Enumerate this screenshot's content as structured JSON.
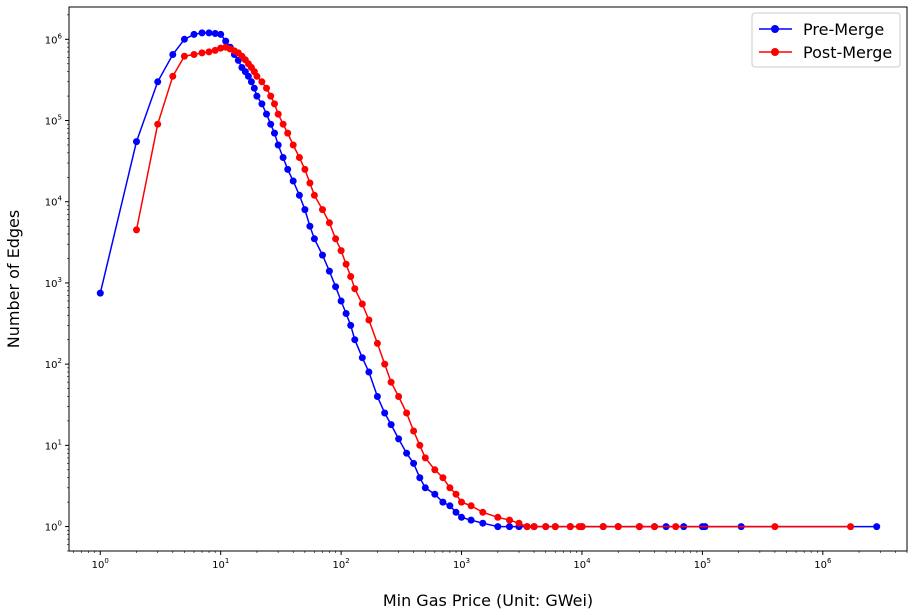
{
  "chart_data": {
    "type": "line",
    "xlabel": "Min Gas Price (Unit: GWei)",
    "ylabel": "Number of Edges",
    "xscale": "log",
    "yscale": "log",
    "xlim": [
      0.55,
      5000000
    ],
    "ylim": [
      0.5,
      2500000
    ],
    "xticks": [
      {
        "value": 1,
        "base": "10",
        "exp": "0"
      },
      {
        "value": 10,
        "base": "10",
        "exp": "1"
      },
      {
        "value": 100,
        "base": "10",
        "exp": "2"
      },
      {
        "value": 1000,
        "base": "10",
        "exp": "3"
      },
      {
        "value": 10000,
        "base": "10",
        "exp": "4"
      },
      {
        "value": 100000,
        "base": "10",
        "exp": "5"
      },
      {
        "value": 1000000,
        "base": "10",
        "exp": "6"
      }
    ],
    "yticks": [
      {
        "value": 1,
        "base": "10",
        "exp": "0"
      },
      {
        "value": 10,
        "base": "10",
        "exp": "1"
      },
      {
        "value": 100,
        "base": "10",
        "exp": "2"
      },
      {
        "value": 1000,
        "base": "10",
        "exp": "3"
      },
      {
        "value": 10000,
        "base": "10",
        "exp": "4"
      },
      {
        "value": 100000,
        "base": "10",
        "exp": "5"
      },
      {
        "value": 1000000,
        "base": "10",
        "exp": "6"
      }
    ],
    "grid": false,
    "legend_position": "top-right",
    "series": [
      {
        "name": "Pre-Merge",
        "color": "#0000ff",
        "marker": "circle",
        "x": [
          1,
          2,
          3,
          4,
          5,
          6,
          7,
          8,
          9,
          10,
          11,
          12,
          13,
          14,
          15,
          16,
          17,
          18,
          19,
          20,
          22,
          24,
          26,
          28,
          30,
          33,
          36,
          40,
          45,
          50,
          55,
          60,
          70,
          80,
          90,
          100,
          110,
          120,
          130,
          150,
          170,
          200,
          230,
          260,
          300,
          350,
          400,
          450,
          500,
          600,
          700,
          800,
          900,
          1000,
          1200,
          1500,
          2000,
          2500,
          3000,
          3500,
          4000,
          5000,
          6000,
          8000,
          10000,
          15000,
          20000,
          30000,
          40000,
          50000,
          70000,
          100000,
          105000,
          210000,
          2800000
        ],
        "y": [
          750,
          55000,
          300000,
          650000,
          1000000,
          1150000,
          1200000,
          1200000,
          1180000,
          1150000,
          950000,
          800000,
          650000,
          550000,
          450000,
          400000,
          350000,
          300000,
          250000,
          200000,
          160000,
          120000,
          90000,
          70000,
          50000,
          35000,
          25000,
          18000,
          12000,
          8000,
          5000,
          3500,
          2200,
          1400,
          900,
          600,
          420,
          300,
          200,
          120,
          80,
          40,
          25,
          18,
          12,
          8,
          6,
          4,
          3,
          2.5,
          2,
          1.8,
          1.5,
          1.3,
          1.2,
          1.1,
          1,
          1,
          1,
          1,
          1,
          1,
          1,
          1,
          1,
          1,
          1,
          1,
          1,
          1,
          1,
          1,
          1,
          1,
          1
        ]
      },
      {
        "name": "Post-Merge",
        "color": "#ff0000",
        "marker": "circle",
        "x": [
          2,
          3,
          4,
          5,
          6,
          7,
          8,
          9,
          10,
          11,
          12,
          13,
          14,
          15,
          16,
          17,
          18,
          19,
          20,
          22,
          24,
          26,
          28,
          30,
          33,
          36,
          40,
          45,
          50,
          55,
          60,
          70,
          80,
          90,
          100,
          110,
          120,
          130,
          150,
          170,
          200,
          230,
          260,
          300,
          350,
          400,
          450,
          500,
          600,
          700,
          800,
          900,
          1000,
          1200,
          1500,
          2000,
          2500,
          3000,
          3500,
          4000,
          5000,
          6000,
          8000,
          9500,
          10000,
          15000,
          20000,
          30000,
          40000,
          60000,
          400000,
          1700000
        ],
        "y": [
          4500,
          90000,
          350000,
          620000,
          650000,
          680000,
          700000,
          730000,
          780000,
          800000,
          760000,
          720000,
          680000,
          620000,
          560000,
          500000,
          450000,
          400000,
          350000,
          300000,
          250000,
          200000,
          160000,
          120000,
          90000,
          70000,
          50000,
          35000,
          25000,
          17000,
          12000,
          8000,
          5500,
          3500,
          2500,
          1700,
          1200,
          850,
          550,
          350,
          180,
          100,
          60,
          40,
          25,
          15,
          10,
          7,
          5,
          4,
          3,
          2.5,
          2,
          1.8,
          1.5,
          1.3,
          1.2,
          1.1,
          1,
          1,
          1,
          1,
          1,
          1,
          1,
          1,
          1,
          1,
          1,
          1,
          1,
          1
        ]
      }
    ]
  }
}
